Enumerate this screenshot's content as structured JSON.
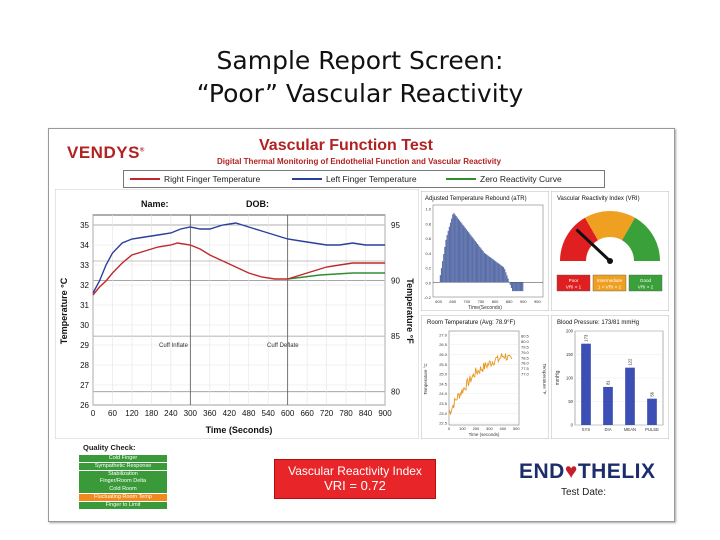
{
  "slide": {
    "title_line1": "Sample Report Screen:",
    "title_line2": "“Poor” Vascular Reactivity"
  },
  "header": {
    "logo": "VENDYS",
    "logo_mark": "®",
    "title": "Vascular Function Test",
    "subtitle": "Digital Thermal Monitoring of Endothelial Function and Vascular Reactivity"
  },
  "legend": {
    "items": [
      {
        "label": "Right Finger Temperature",
        "color": "#c0282d"
      },
      {
        "label": "Left Finger Temperature",
        "color": "#2a3f9a"
      },
      {
        "label": "Zero Reactivity Curve",
        "color": "#2f8f2f"
      }
    ]
  },
  "patient": {
    "name_label": "Name:",
    "dob_label": "DOB:"
  },
  "main_chart": {
    "ylabel_left": "Temperature °C",
    "ylabel_right": "Temperature °F",
    "xlabel": "Time (Seconds)",
    "annot_cuff_inflate": "Cuff Inflate",
    "annot_cuff_deflate": "Cuff Deflate",
    "left_ticks": [
      "35",
      "34",
      "33",
      "32",
      "31",
      "30",
      "29",
      "28",
      "27",
      "26"
    ],
    "right_ticks": [
      "95",
      "90",
      "85",
      "80"
    ],
    "x_ticks": [
      "0",
      "60",
      "120",
      "180",
      "240",
      "300",
      "360",
      "420",
      "480",
      "540",
      "600",
      "660",
      "720",
      "780",
      "840",
      "900"
    ]
  },
  "quality": {
    "title": "Quality Check:",
    "items": [
      {
        "label": "Cold Finger",
        "status": "ok"
      },
      {
        "label": "Sympathetic Response",
        "status": "ok"
      },
      {
        "label": "Stabilization",
        "status": "ok"
      },
      {
        "label": "Finger/Room Delta",
        "status": "ok"
      },
      {
        "label": "Cold Room",
        "status": "ok"
      },
      {
        "label": "Fluctuating Room Temp",
        "status": "warn"
      },
      {
        "label": "Finger to Limit",
        "status": "ok"
      }
    ]
  },
  "vri": {
    "label": "Vascular Reactivity Index",
    "value_text": "VRI = 0.72"
  },
  "brand": {
    "left": "END",
    "heart": "♥",
    "right": "THELIX",
    "test_date_label": "Test Date:"
  },
  "gauge": {
    "title": "Vascular Reactivity Index (VRI)",
    "boxes": [
      {
        "line1": "Poor",
        "line2": "VRI < 1",
        "color": "#e02020"
      },
      {
        "line1": "Intermediate",
        "line2": "1 < VRI < 2",
        "color": "#f0a020"
      },
      {
        "line1": "Good",
        "line2": "VRI > 2",
        "color": "#3aa03a"
      }
    ],
    "value": 0.72
  },
  "rebound_chart": {
    "title": "Adjusted Temperature Rebound (aTR)",
    "xlabel": "Time(Seconds)",
    "y_ticks": [
      "1.0",
      "0.8",
      "0.6",
      "0.4",
      "0.2",
      "0.0",
      "-0.2"
    ],
    "x_ticks": [
      "600",
      "650",
      "700",
      "750",
      "800",
      "850",
      "900",
      "950"
    ]
  },
  "room_chart": {
    "title": "Room Temperature (Avg: 78.9°F)",
    "ylabel_left": "Temperature °C",
    "ylabel_right": "Temperature °F",
    "xlabel": "Time (seconds)",
    "left_ticks": [
      "27.0",
      "26.5",
      "26.0",
      "25.5",
      "25.0",
      "24.5",
      "24.0",
      "23.5",
      "23.0",
      "22.5"
    ],
    "right_ticks": [
      "80.5",
      "80.0",
      "79.5",
      "79.0",
      "78.5",
      "78.0",
      "77.5",
      "77.0"
    ],
    "x_ticks": [
      "0",
      "100",
      "200",
      "300",
      "400",
      "500"
    ]
  },
  "bp_chart": {
    "title": "Blood Pressure: 173/81 mmHg",
    "ylabel": "mmHg",
    "y_ticks": [
      "200",
      "150",
      "100",
      "50",
      "0"
    ],
    "categories": [
      "SYS",
      "DIA",
      "MEAN",
      "PULSE"
    ],
    "values": [
      173,
      81,
      122,
      56
    ],
    "bar_color": "#3b4fb5",
    "value_labels": [
      "173",
      "81",
      "122",
      "56"
    ]
  }
}
